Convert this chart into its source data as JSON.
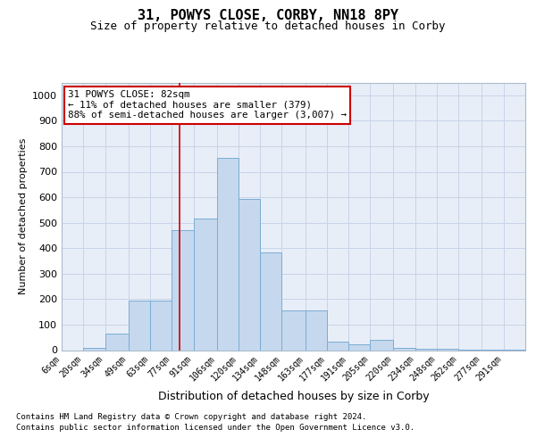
{
  "title1": "31, POWYS CLOSE, CORBY, NN18 8PY",
  "title2": "Size of property relative to detached houses in Corby",
  "xlabel": "Distribution of detached houses by size in Corby",
  "ylabel": "Number of detached properties",
  "categories": [
    "6sqm",
    "20sqm",
    "34sqm",
    "49sqm",
    "63sqm",
    "77sqm",
    "91sqm",
    "106sqm",
    "120sqm",
    "134sqm",
    "148sqm",
    "163sqm",
    "177sqm",
    "191sqm",
    "205sqm",
    "220sqm",
    "234sqm",
    "248sqm",
    "262sqm",
    "277sqm",
    "291sqm"
  ],
  "bin_edges": [
    6,
    20,
    34,
    49,
    63,
    77,
    91,
    106,
    120,
    134,
    148,
    163,
    177,
    191,
    205,
    220,
    234,
    248,
    262,
    277,
    291,
    305
  ],
  "bar_heights": [
    0,
    10,
    65,
    195,
    195,
    470,
    515,
    755,
    595,
    385,
    155,
    155,
    35,
    22,
    40,
    10,
    5,
    5,
    3,
    2,
    1
  ],
  "bar_color": "#c5d8ee",
  "bar_edgecolor": "#7aadd4",
  "grid_color": "#c8d4e8",
  "annotation_line1": "31 POWYS CLOSE: 82sqm",
  "annotation_line2": "← 11% of detached houses are smaller (379)",
  "annotation_line3": "88% of semi-detached houses are larger (3,007) →",
  "annotation_box_facecolor": "#ffffff",
  "annotation_box_edgecolor": "#cc0000",
  "vline_x": 82,
  "vline_color": "#cc0000",
  "ylim": [
    0,
    1050
  ],
  "yticks": [
    0,
    100,
    200,
    300,
    400,
    500,
    600,
    700,
    800,
    900,
    1000
  ],
  "footnote1": "Contains HM Land Registry data © Crown copyright and database right 2024.",
  "footnote2": "Contains public sector information licensed under the Open Government Licence v3.0.",
  "bg_color": "#ffffff",
  "plot_bg_color": "#e8eef8"
}
